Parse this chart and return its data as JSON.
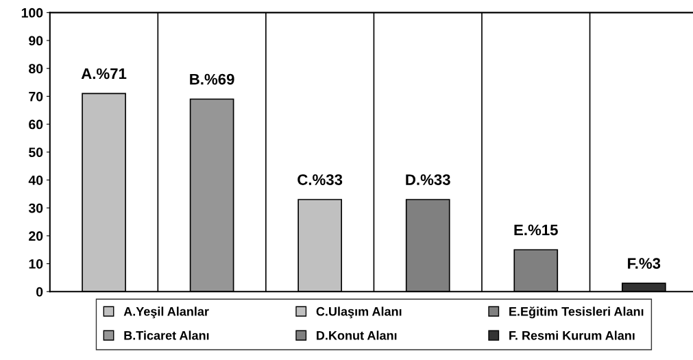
{
  "chart_data": {
    "type": "bar",
    "categories": [
      null,
      null,
      null,
      null,
      null,
      null
    ],
    "series": [
      {
        "name": "A.Yeşil Alanlar",
        "color": "#c0c0c0",
        "values": [
          71,
          null,
          null,
          null,
          null,
          null
        ],
        "value_labels": [
          "A.%71",
          null,
          null,
          null,
          null,
          null
        ]
      },
      {
        "name": "B.Ticaret Alanı",
        "color": "#969696",
        "values": [
          null,
          69,
          null,
          null,
          null,
          null
        ],
        "value_labels": [
          null,
          "B.%69",
          null,
          null,
          null,
          null
        ]
      },
      {
        "name": "C.Ulaşım Alanı",
        "color": "#c0c0c0",
        "values": [
          null,
          null,
          33,
          null,
          null,
          null
        ],
        "value_labels": [
          null,
          null,
          "C.%33",
          null,
          null,
          null
        ]
      },
      {
        "name": "D.Konut Alanı",
        "color": "#808080",
        "values": [
          null,
          null,
          null,
          33,
          null,
          null
        ],
        "value_labels": [
          null,
          null,
          null,
          "D.%33",
          null,
          null
        ]
      },
      {
        "name": "E.Eğitim Tesisleri Alanı",
        "color": "#808080",
        "values": [
          null,
          null,
          null,
          null,
          15,
          null
        ],
        "value_labels": [
          null,
          null,
          null,
          null,
          "E.%15",
          null
        ]
      },
      {
        "name": "F. Resmi Kurum Alanı",
        "color": "#333333",
        "values": [
          null,
          null,
          null,
          null,
          null,
          3
        ],
        "value_labels": [
          null,
          null,
          null,
          null,
          null,
          "F.%3"
        ]
      }
    ],
    "ylim": [
      0,
      100
    ],
    "yticks": [
      0,
      10,
      20,
      30,
      40,
      50,
      60,
      70,
      80,
      90,
      100
    ],
    "grid": "x",
    "legend": "bottom"
  }
}
